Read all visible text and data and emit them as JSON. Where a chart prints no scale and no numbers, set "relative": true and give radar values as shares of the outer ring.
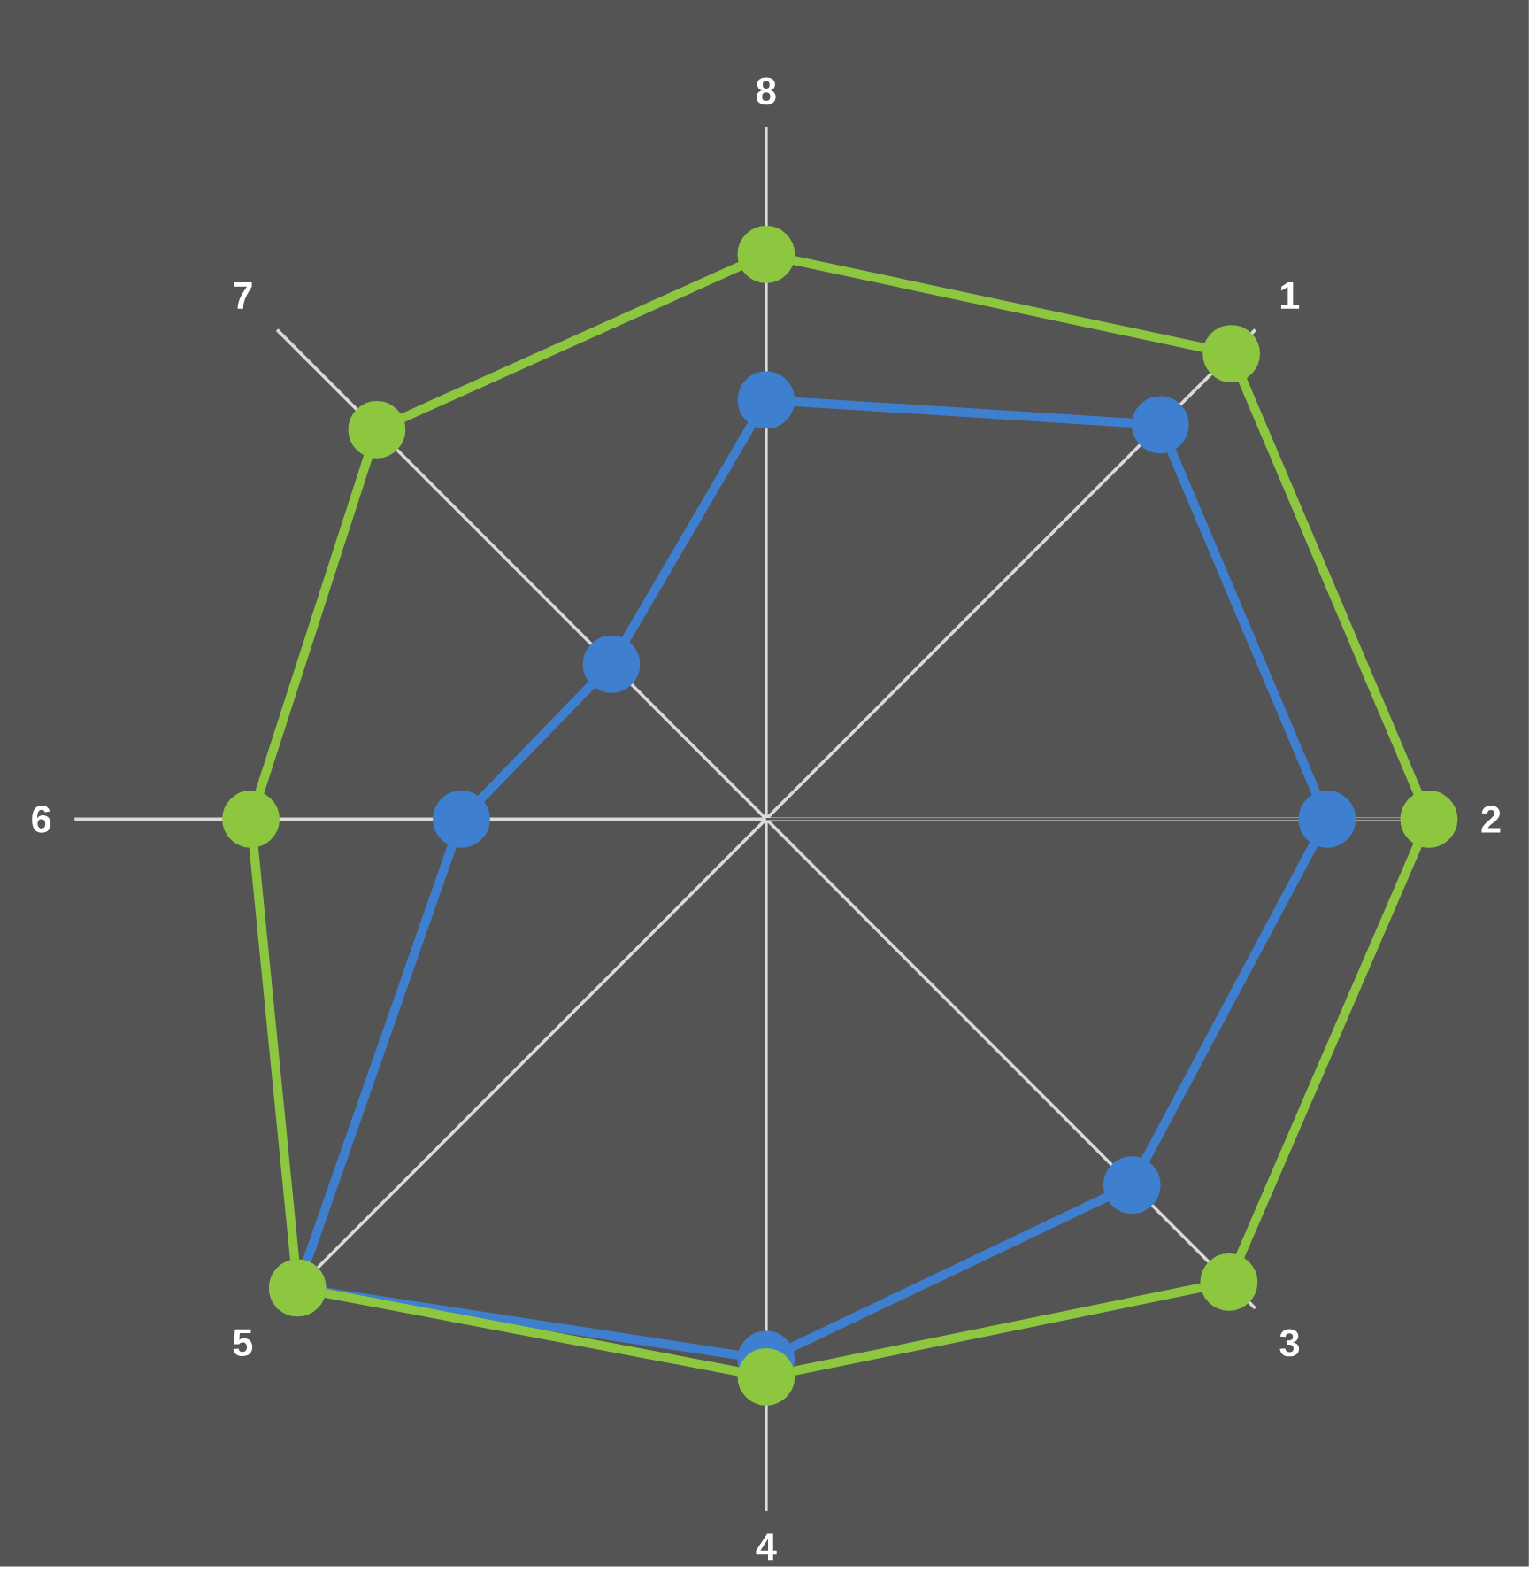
{
  "chart_data": {
    "type": "radar",
    "relative": true,
    "categories": [
      "8",
      "1",
      "2",
      "3",
      "4",
      "5",
      "6",
      "7"
    ],
    "marker": "circle",
    "line_style": "solid",
    "series": [
      {
        "color": "#3f7fd0",
        "values": [
          0.605,
          0.805,
          0.81,
          0.747,
          0.78,
          0.957,
          0.44,
          0.316
        ]
      },
      {
        "color": "#8dc63f",
        "values": [
          0.815,
          0.95,
          0.957,
          0.945,
          0.805,
          0.957,
          0.744,
          0.795
        ]
      }
    ]
  }
}
